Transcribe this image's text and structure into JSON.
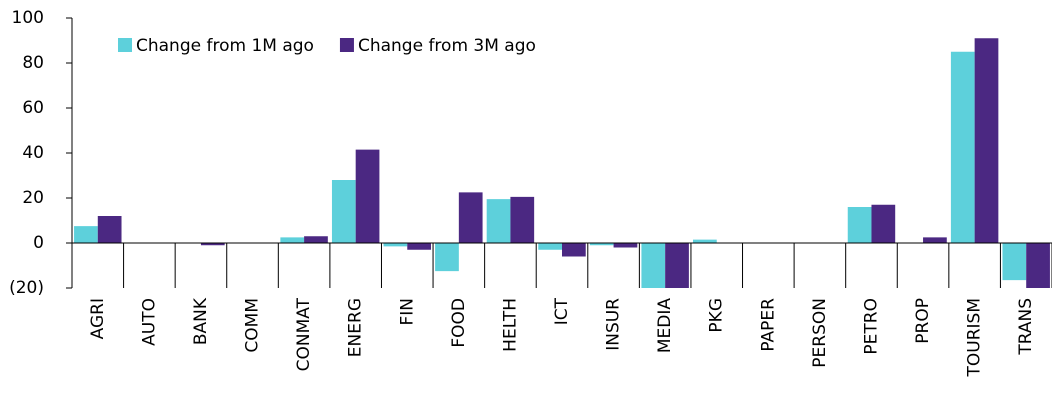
{
  "chart_data": {
    "type": "bar",
    "categories": [
      "AGRI",
      "AUTO",
      "BANK",
      "COMM",
      "CONMAT",
      "ENERG",
      "FIN",
      "FOOD",
      "HELTH",
      "ICT",
      "INSUR",
      "MEDIA",
      "PKG",
      "PAPER",
      "PERSON",
      "PETRO",
      "PROP",
      "TOURISM",
      "TRANS"
    ],
    "series": [
      {
        "name": "Change from 1M ago",
        "color": "#5dd0db",
        "values": [
          7.5,
          0,
          0,
          0,
          2.5,
          28,
          -1.5,
          -12.5,
          19.5,
          -3,
          -1,
          -20,
          1.5,
          0,
          0,
          16,
          0,
          85,
          -16.5
        ]
      },
      {
        "name": "Change from 3M ago",
        "color": "#4b2882",
        "values": [
          12,
          0,
          -1,
          0,
          3,
          41.5,
          -3,
          22.5,
          20.5,
          -6,
          -2,
          -20,
          0,
          0,
          0,
          17,
          2.5,
          91,
          -20
        ]
      }
    ],
    "ylim": [
      -20,
      100
    ],
    "yticks": [
      {
        "value": -20,
        "label": "(20)"
      },
      0,
      20,
      40,
      60,
      80,
      100
    ],
    "legend": "top-left"
  }
}
